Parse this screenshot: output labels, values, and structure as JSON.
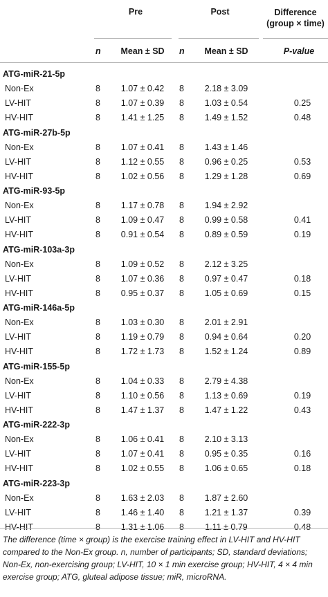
{
  "header": {
    "pre": "Pre",
    "post": "Post",
    "difference_line1": "Difference",
    "difference_line2": "(group × time)",
    "n": "n",
    "mean_sd": "Mean ± SD",
    "pvalue": "P-value"
  },
  "groups": [
    {
      "title": "ATG-miR-21-5p",
      "rows": [
        {
          "label": "Non-Ex",
          "n_pre": "8",
          "pre": "1.07 ± 0.42",
          "n_post": "8",
          "post": "2.18 ± 3.09",
          "p": ""
        },
        {
          "label": "LV-HIT",
          "n_pre": "8",
          "pre": "1.07 ± 0.39",
          "n_post": "8",
          "post": "1.03 ± 0.54",
          "p": "0.25"
        },
        {
          "label": "HV-HIT",
          "n_pre": "8",
          "pre": "1.41 ± 1.25",
          "n_post": "8",
          "post": "1.49 ± 1.52",
          "p": "0.48"
        }
      ]
    },
    {
      "title": "ATG-miR-27b-5p",
      "rows": [
        {
          "label": "Non-Ex",
          "n_pre": "8",
          "pre": "1.07 ± 0.41",
          "n_post": "8",
          "post": "1.43 ± 1.46",
          "p": ""
        },
        {
          "label": "LV-HIT",
          "n_pre": "8",
          "pre": "1.12 ± 0.55",
          "n_post": "8",
          "post": "0.96 ± 0.25",
          "p": "0.53"
        },
        {
          "label": "HV-HIT",
          "n_pre": "8",
          "pre": "1.02 ± 0.56",
          "n_post": "8",
          "post": "1.29 ± 1.28",
          "p": "0.69"
        }
      ]
    },
    {
      "title": "ATG-miR-93-5p",
      "rows": [
        {
          "label": "Non-Ex",
          "n_pre": "8",
          "pre": "1.17 ± 0.78",
          "n_post": "8",
          "post": "1.94 ± 2.92",
          "p": ""
        },
        {
          "label": "LV-HIT",
          "n_pre": "8",
          "pre": "1.09 ± 0.47",
          "n_post": "8",
          "post": "0.99 ± 0.58",
          "p": "0.41"
        },
        {
          "label": "HV-HIT",
          "n_pre": "8",
          "pre": "0.91 ± 0.54",
          "n_post": "8",
          "post": "0.89 ± 0.59",
          "p": "0.19"
        }
      ]
    },
    {
      "title": "ATG-miR-103a-3p",
      "rows": [
        {
          "label": "Non-Ex",
          "n_pre": "8",
          "pre": "1.09 ± 0.52",
          "n_post": "8",
          "post": "2.12 ± 3.25",
          "p": ""
        },
        {
          "label": "LV-HIT",
          "n_pre": "8",
          "pre": "1.07 ± 0.36",
          "n_post": "8",
          "post": "0.97 ± 0.47",
          "p": "0.18"
        },
        {
          "label": "HV-HIT",
          "n_pre": "8",
          "pre": "0.95 ± 0.37",
          "n_post": "8",
          "post": "1.05 ± 0.69",
          "p": "0.15"
        }
      ]
    },
    {
      "title": "ATG-miR-146a-5p",
      "rows": [
        {
          "label": "Non-Ex",
          "n_pre": "8",
          "pre": "1.03 ± 0.30",
          "n_post": "8",
          "post": "2.01 ± 2.91",
          "p": ""
        },
        {
          "label": "LV-HIT",
          "n_pre": "8",
          "pre": "1.19 ± 0.79",
          "n_post": "8",
          "post": "0.94 ± 0.64",
          "p": "0.20"
        },
        {
          "label": "HV-HIT",
          "n_pre": "8",
          "pre": "1.72 ± 1.73",
          "n_post": "8",
          "post": "1.52 ± 1.24",
          "p": "0.89"
        }
      ]
    },
    {
      "title": "ATG-miR-155-5p",
      "rows": [
        {
          "label": "Non-Ex",
          "n_pre": "8",
          "pre": "1.04 ± 0.33",
          "n_post": "8",
          "post": "2.79 ± 4.38",
          "p": ""
        },
        {
          "label": "LV-HIT",
          "n_pre": "8",
          "pre": "1.10 ± 0.56",
          "n_post": "8",
          "post": "1.13 ± 0.69",
          "p": "0.19"
        },
        {
          "label": "HV-HIT",
          "n_pre": "8",
          "pre": "1.47 ± 1.37",
          "n_post": "8",
          "post": "1.47 ± 1.22",
          "p": "0.43"
        }
      ]
    },
    {
      "title": "ATG-miR-222-3p",
      "rows": [
        {
          "label": "Non-Ex",
          "n_pre": "8",
          "pre": "1.06 ± 0.41",
          "n_post": "8",
          "post": "2.10 ± 3.13",
          "p": ""
        },
        {
          "label": "LV-HIT",
          "n_pre": "8",
          "pre": "1.07 ± 0.41",
          "n_post": "8",
          "post": "0.95 ± 0.35",
          "p": "0.16"
        },
        {
          "label": "HV-HIT",
          "n_pre": "8",
          "pre": "1.02 ± 0.55",
          "n_post": "8",
          "post": "1.06 ± 0.65",
          "p": "0.18"
        }
      ]
    },
    {
      "title": "ATG-miR-223-3p",
      "rows": [
        {
          "label": "Non-Ex",
          "n_pre": "8",
          "pre": "1.63 ± 2.03",
          "n_post": "8",
          "post": "1.87 ± 2.60",
          "p": ""
        },
        {
          "label": "LV-HIT",
          "n_pre": "8",
          "pre": "1.46 ± 1.40",
          "n_post": "8",
          "post": "1.21 ± 1.37",
          "p": "0.39"
        },
        {
          "label": "HV-HIT",
          "n_pre": "8",
          "pre": "1.31 ± 1.06",
          "n_post": "8",
          "post": "1.11 ± 0.79",
          "p": "0.48"
        }
      ]
    }
  ],
  "footnote": "The difference (time × group) is the exercise training effect in LV-HIT and HV-HIT compared to the Non-Ex group. n, number of participants; SD, standard deviations; Non-Ex, non-exercising group; LV-HIT, 10 × 1 min exercise group; HV-HIT, 4 × 4 min exercise group; ATG, gluteal adipose tissue; miR, microRNA."
}
